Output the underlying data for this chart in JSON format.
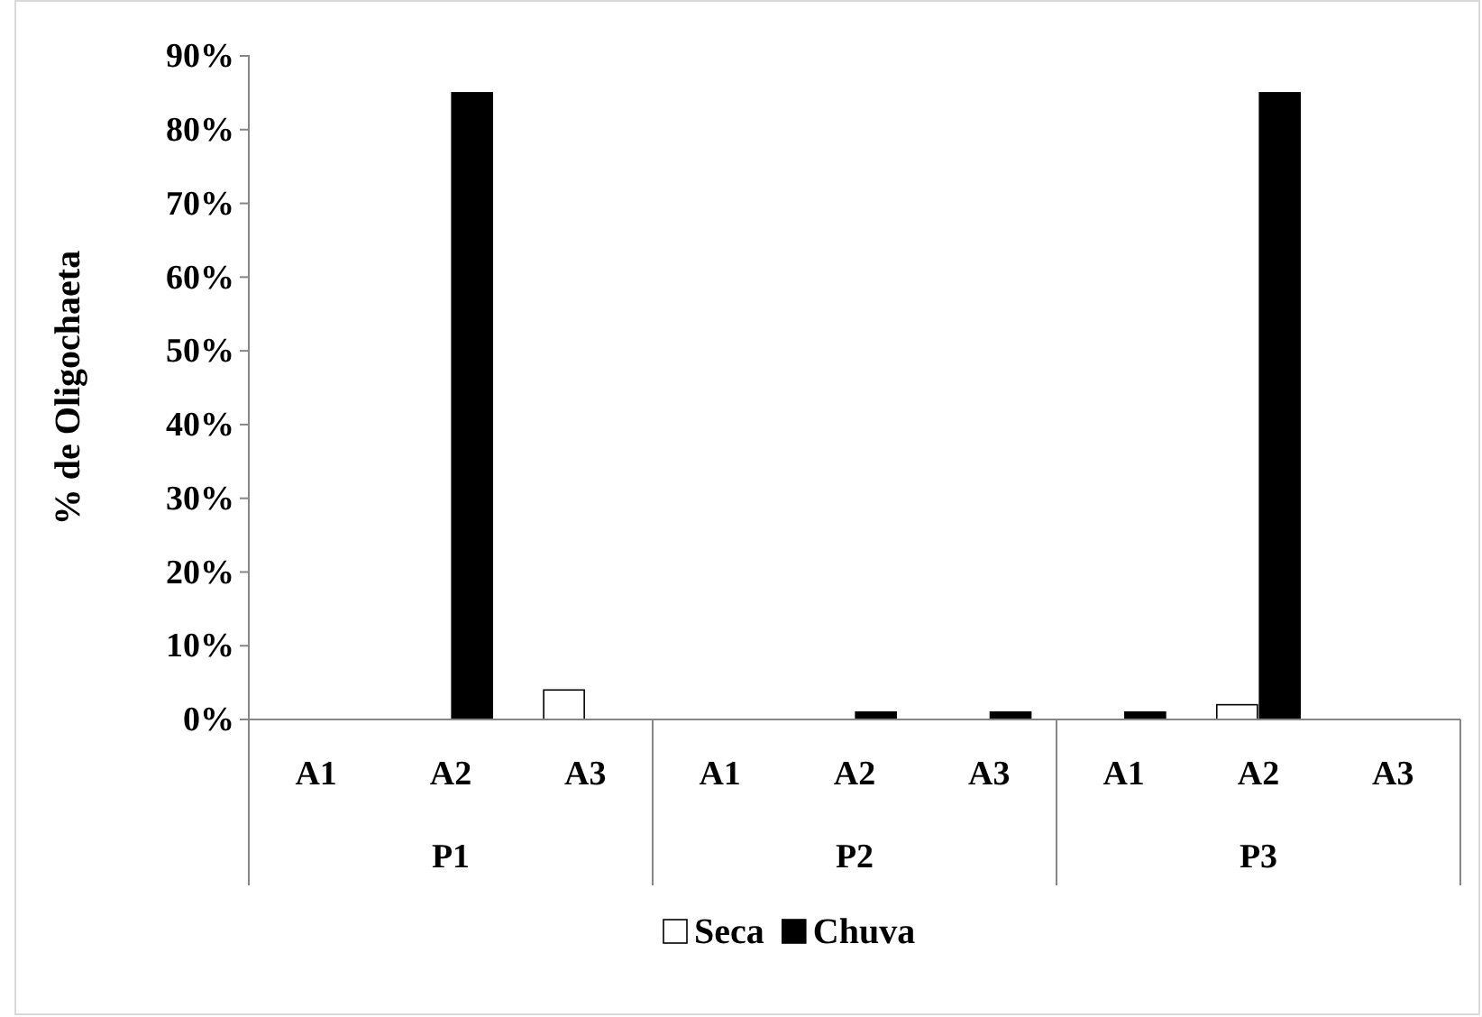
{
  "chart_data": {
    "type": "bar",
    "ylabel": "% de Oligochaeta",
    "categories": [
      "A1",
      "A2",
      "A3",
      "A1",
      "A2",
      "A3",
      "A1",
      "A2",
      "A3"
    ],
    "annotations": [
      "P1",
      "P2",
      "P3"
    ],
    "series": [
      {
        "name": "Seca",
        "color": "#ffffff",
        "values": [
          0,
          0,
          4,
          0,
          0,
          0,
          0,
          2,
          0
        ]
      },
      {
        "name": "Chuva",
        "color": "#000000",
        "values": [
          0,
          85,
          0,
          0,
          1,
          1,
          1,
          85,
          0
        ]
      }
    ],
    "ylim": [
      0,
      90
    ],
    "yticks": [
      {
        "value": 0,
        "label": "0%"
      },
      {
        "value": 10,
        "label": "10%"
      },
      {
        "value": 20,
        "label": "20%"
      },
      {
        "value": 30,
        "label": "30%"
      },
      {
        "value": 40,
        "label": "40%"
      },
      {
        "value": 50,
        "label": "50%"
      },
      {
        "value": 60,
        "label": "60%"
      },
      {
        "value": 70,
        "label": "70%"
      },
      {
        "value": 80,
        "label": "80%"
      },
      {
        "value": 90,
        "label": "90%"
      }
    ],
    "grid": false,
    "legend": "bottom"
  }
}
